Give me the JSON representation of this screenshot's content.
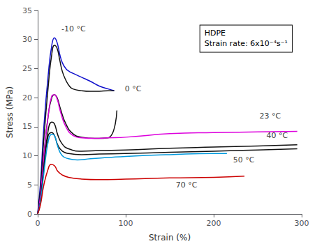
{
  "chart_data": {
    "type": "line",
    "xlabel": "Strain (%)",
    "ylabel": "Stress (MPa)",
    "xlim": [
      0,
      300
    ],
    "ylim": [
      0,
      35
    ],
    "xticks": [
      0,
      100,
      200,
      300
    ],
    "yticks": [
      0,
      5,
      10,
      15,
      20,
      25,
      30,
      35
    ],
    "grid": false,
    "text_box": "HDPE\nStrain rate: 6x10⁻⁴s⁻¹",
    "series": [
      {
        "color": "#1010CC",
        "x": [
          0,
          3,
          7,
          12,
          16,
          19,
          22,
          25,
          28,
          32,
          36,
          40,
          50,
          60,
          70,
          80,
          87
        ],
        "values": [
          0.2,
          5,
          15,
          24,
          29.0,
          30.3,
          29.5,
          27.5,
          26.0,
          25.0,
          24.5,
          24.2,
          23.5,
          22.8,
          22.0,
          21.5,
          21.2
        ]
      },
      {
        "color": "#111111",
        "x": [
          0,
          3,
          7,
          12,
          16,
          19,
          22,
          25,
          28,
          32,
          36,
          40,
          50,
          60,
          70,
          80,
          87
        ],
        "values": [
          0,
          4,
          13,
          22,
          27.5,
          29.0,
          28.5,
          26.5,
          24.5,
          23.0,
          22.0,
          21.5,
          21.2,
          21.1,
          21.1,
          21.2,
          21.2
        ]
      },
      {
        "color": "#111111",
        "x": [
          0,
          3,
          7,
          12,
          16,
          19,
          22,
          26,
          32,
          40,
          50,
          65,
          80,
          90
        ],
        "values": [
          0,
          3,
          10,
          17,
          20.0,
          20.5,
          20.0,
          18.0,
          15.5,
          13.8,
          13.2,
          13.0,
          13.1,
          17.8
        ]
      },
      {
        "color": "#DD00DD",
        "x": [
          0,
          3,
          7,
          12,
          16,
          19,
          22,
          26,
          32,
          40,
          50,
          65,
          80,
          100,
          150,
          200,
          250,
          295
        ],
        "values": [
          0,
          3,
          10,
          17,
          20.3,
          20.5,
          19.8,
          17.5,
          15.0,
          13.5,
          13.1,
          13.0,
          13.1,
          13.2,
          13.8,
          14.0,
          14.1,
          14.2
        ]
      },
      {
        "color": "#111111",
        "x": [
          0,
          3,
          7,
          12,
          16,
          19,
          23,
          28,
          35,
          50,
          70,
          100,
          150,
          200,
          250,
          295
        ],
        "values": [
          0,
          2,
          8,
          14.5,
          15.8,
          15.5,
          13.5,
          12.0,
          11.2,
          10.8,
          10.9,
          11.0,
          11.3,
          11.5,
          11.7,
          11.9
        ]
      },
      {
        "color": "#111111",
        "x": [
          0,
          3,
          7,
          12,
          16,
          19,
          23,
          28,
          35,
          50,
          70,
          100,
          150,
          200,
          250,
          295
        ],
        "values": [
          0,
          2,
          8,
          13.5,
          14.0,
          13.5,
          11.8,
          10.8,
          10.4,
          10.2,
          10.3,
          10.4,
          10.6,
          10.8,
          11.0,
          11.2
        ]
      },
      {
        "color": "#0099DD",
        "x": [
          0,
          3,
          7,
          12,
          16,
          19,
          23,
          28,
          35,
          45,
          60,
          80,
          100,
          150,
          200,
          215
        ],
        "values": [
          0,
          2,
          7,
          12.5,
          13.7,
          13.5,
          11.5,
          10.0,
          9.5,
          9.3,
          9.5,
          9.7,
          9.9,
          10.2,
          10.4,
          10.4
        ]
      },
      {
        "color": "#CC0000",
        "x": [
          0,
          3,
          7,
          12,
          15,
          19,
          23,
          28,
          35,
          50,
          70,
          100,
          150,
          200,
          235
        ],
        "values": [
          0,
          1.5,
          5,
          7.8,
          8.5,
          8.3,
          7.3,
          6.7,
          6.3,
          6.0,
          5.9,
          6.0,
          6.2,
          6.3,
          6.5
        ]
      }
    ],
    "annotations": [
      {
        "text": "-10 °C",
        "x": 27,
        "y": 31.8
      },
      {
        "text": "0 °C",
        "x": 99,
        "y": 21.5
      },
      {
        "text": "23 °C",
        "x": 252,
        "y": 16.8
      },
      {
        "text": "40 °C",
        "x": 260,
        "y": 13.5
      },
      {
        "text": "50 °C",
        "x": 222,
        "y": 9.3
      },
      {
        "text": "70 °C",
        "x": 157,
        "y": 5.0
      }
    ]
  }
}
